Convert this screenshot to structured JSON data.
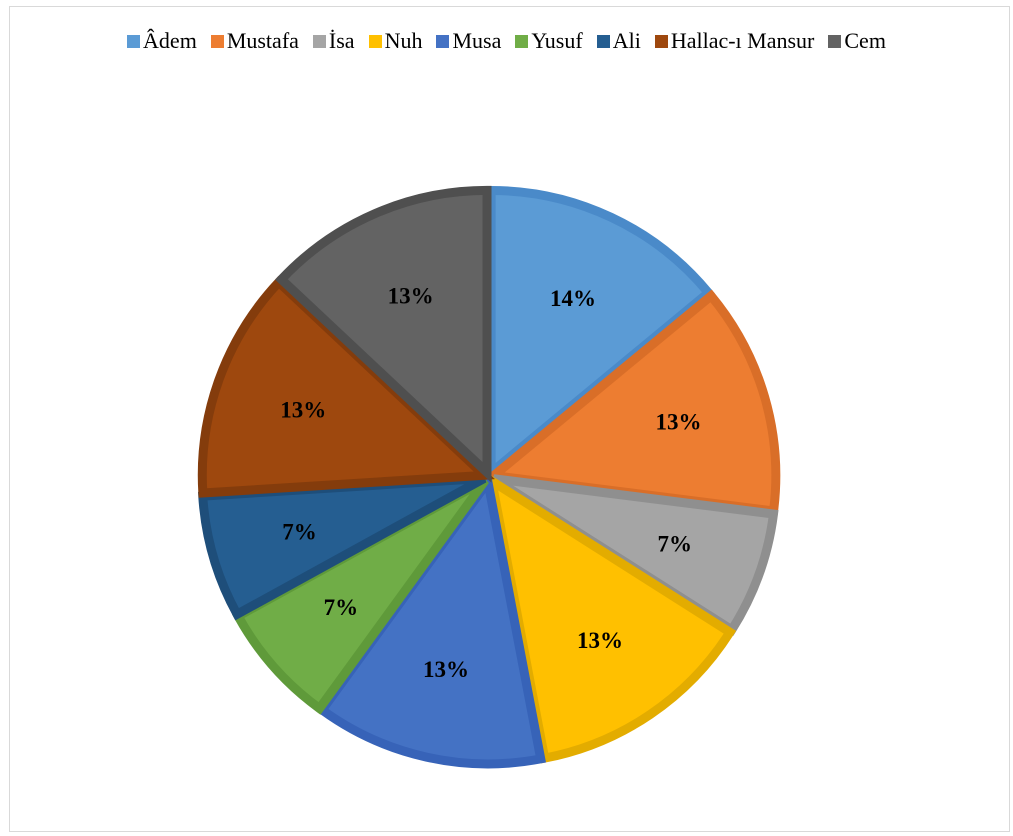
{
  "chart_data": {
    "type": "pie",
    "title": "",
    "legend_position": "top",
    "categories": [
      "Âdem",
      "Mustafa",
      "İsa",
      "Nuh",
      "Musa",
      "Yusuf",
      "Ali",
      "Hallac-ı Mansur",
      "Cem"
    ],
    "values": [
      14,
      13,
      7,
      13,
      13,
      7,
      7,
      13,
      13
    ],
    "labels": [
      "14%",
      "13%",
      "7%",
      "13%",
      "13%",
      "7%",
      "7%",
      "13%",
      "13%"
    ],
    "colors": [
      "#5B9BD5",
      "#ED7D31",
      "#A5A5A5",
      "#FFC000",
      "#4472C4",
      "#70AD47",
      "#255E91",
      "#9E480E",
      "#636363"
    ],
    "border_colors": [
      "#4A8AC9",
      "#D96E28",
      "#8F8F8F",
      "#E3AC00",
      "#3763B8",
      "#5F9A3A",
      "#1E4E7A",
      "#843C0C",
      "#4F4F4F"
    ],
    "exploded": true
  }
}
